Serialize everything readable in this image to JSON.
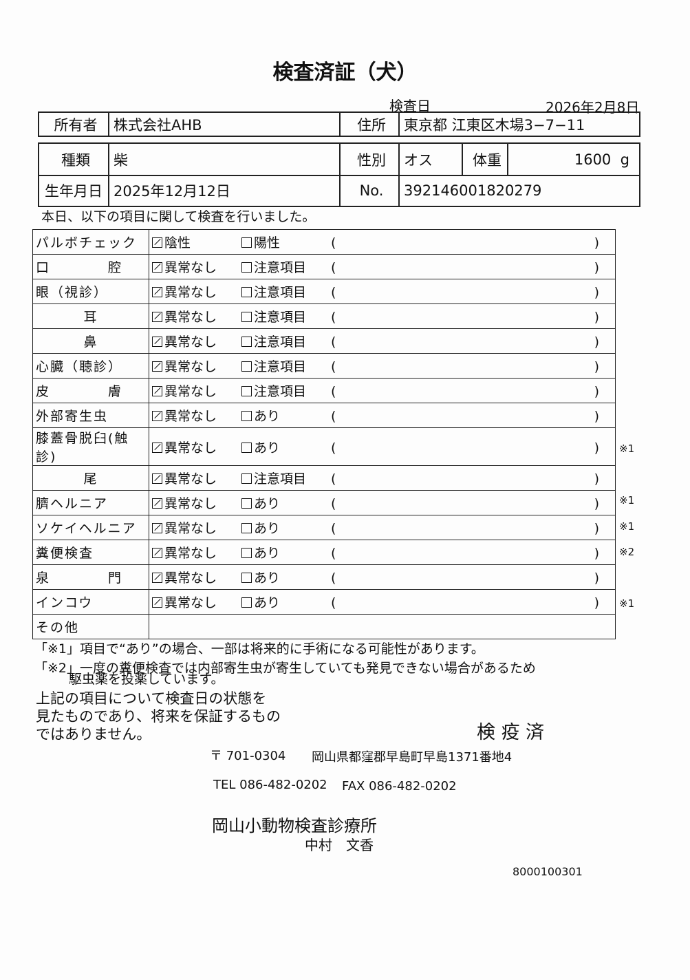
{
  "title": "検査済証（犬）",
  "exam_date_label": "検査日",
  "exam_date": "2026年2月8日",
  "owner": {
    "label": "所有者",
    "value": "株式会社AHB"
  },
  "address": {
    "label": "住所",
    "value": "東京都 江東区木場3−7−11"
  },
  "breed": {
    "label": "種類",
    "value": "柴"
  },
  "sex": {
    "label": "性別",
    "value": "オス"
  },
  "weight": {
    "label": "体重",
    "value": "1600",
    "unit": "g"
  },
  "birth": {
    "label": "生年月日",
    "value": "2025年12月12日"
  },
  "number": {
    "label": "No.",
    "value": "392146001820279"
  },
  "intro": "本日、以下の項目に関して検査を行いました。",
  "items": [
    {
      "label": "パルボチェック",
      "opt1": "陰性",
      "opt2": "陽性",
      "checked": 1,
      "note": ""
    },
    {
      "label": "口　　　　腔",
      "opt1": "異常なし",
      "opt2": "注意項目",
      "checked": 1,
      "note": ""
    },
    {
      "label": "眼（視診）",
      "opt1": "異常なし",
      "opt2": "注意項目",
      "checked": 1,
      "note": ""
    },
    {
      "label": "耳",
      "opt1": "異常なし",
      "opt2": "注意項目",
      "checked": 1,
      "note": ""
    },
    {
      "label": "鼻",
      "opt1": "異常なし",
      "opt2": "注意項目",
      "checked": 1,
      "note": ""
    },
    {
      "label": "心臓（聴診）",
      "opt1": "異常なし",
      "opt2": "注意項目",
      "checked": 1,
      "note": ""
    },
    {
      "label": "皮　　　　膚",
      "opt1": "異常なし",
      "opt2": "注意項目",
      "checked": 1,
      "note": ""
    },
    {
      "label": "外部寄生虫",
      "opt1": "異常なし",
      "opt2": "あり",
      "checked": 1,
      "note": ""
    },
    {
      "label": "膝蓋骨脱臼(触診)",
      "opt1": "異常なし",
      "opt2": "あり",
      "checked": 1,
      "note": "※1"
    },
    {
      "label": "尾",
      "opt1": "異常なし",
      "opt2": "注意項目",
      "checked": 1,
      "note": ""
    },
    {
      "label": "臍ヘルニア",
      "opt1": "異常なし",
      "opt2": "あり",
      "checked": 1,
      "note": "※1"
    },
    {
      "label": "ソケイヘルニア",
      "opt1": "異常なし",
      "opt2": "あり",
      "checked": 1,
      "note": "※1"
    },
    {
      "label": "糞便検査",
      "opt1": "異常なし",
      "opt2": "あり",
      "checked": 1,
      "note": "※2"
    },
    {
      "label": "泉　　　　門",
      "opt1": "異常なし",
      "opt2": "あり",
      "checked": 1,
      "note": ""
    },
    {
      "label": "インコウ",
      "opt1": "異常なし",
      "opt2": "あり",
      "checked": 1,
      "note": "※1"
    }
  ],
  "other_label": "その他",
  "footnote1": "「※1」項目で“あり”の場合、一部は将来的に手術になる可能性があります。",
  "footnote2a": "「※2」一度の糞便検査では内部寄生虫が寄生していても発見できない場合があるため",
  "footnote2b": "駆虫薬を投薬しています。",
  "disclaimer": [
    "上記の項目について検査日の状態を",
    "見たものであり、将来を保証するもの",
    "ではありません。"
  ],
  "stamp": "検 疫 済",
  "postal": "〒 701-0304",
  "clinic_address": "岡山県都窪郡早島町早島1371番地4",
  "tel": "TEL 086-482-0202",
  "fax": "FAX 086-482-0202",
  "clinic_name": "岡山小動物検査診療所",
  "vet_name": "中村　文香",
  "doc_code": "8000100301"
}
